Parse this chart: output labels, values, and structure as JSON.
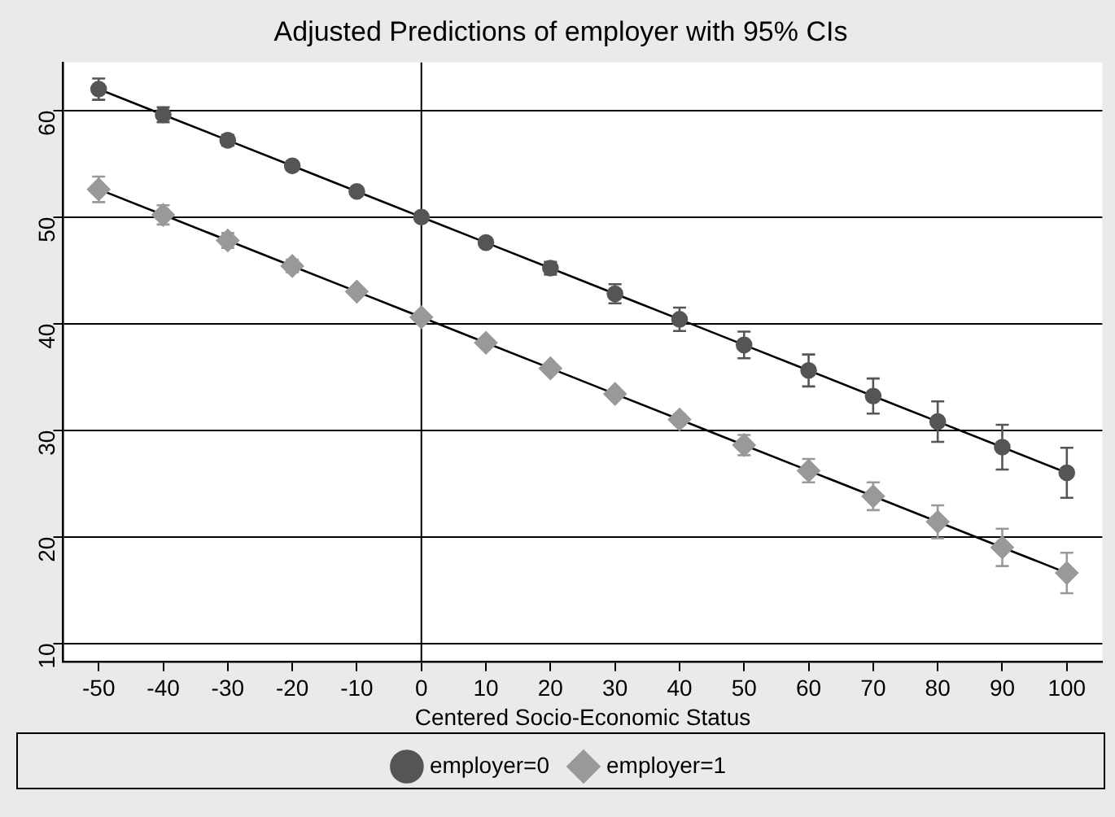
{
  "chart_data": {
    "type": "line",
    "title": "Adjusted Predictions of employer with 95% CIs",
    "xlabel": "Centered Socio-Economic Status",
    "x": [
      -50,
      -40,
      -30,
      -20,
      -10,
      0,
      10,
      20,
      30,
      40,
      50,
      60,
      70,
      80,
      90,
      100
    ],
    "xlim": [
      -55.5,
      105.5
    ],
    "xticks": [
      -50,
      -40,
      -30,
      -20,
      -10,
      0,
      10,
      20,
      30,
      40,
      50,
      60,
      70,
      80,
      90,
      100
    ],
    "ylim": [
      8.3,
      64.5
    ],
    "yticks": [
      10,
      20,
      30,
      40,
      50,
      60
    ],
    "series": [
      {
        "name": "employer=0",
        "color": "#555555",
        "marker": "circle",
        "values": [
          62.0,
          59.6,
          57.2,
          54.8,
          52.4,
          50.0,
          47.6,
          45.2,
          42.8,
          40.4,
          38.0,
          35.6,
          33.2,
          30.8,
          28.4,
          26.0
        ],
        "errors": [
          1.0,
          0.7,
          0.5,
          0.4,
          0.3,
          0.3,
          0.4,
          0.6,
          0.9,
          1.1,
          1.25,
          1.5,
          1.65,
          1.9,
          2.1,
          2.35
        ]
      },
      {
        "name": "employer=1",
        "color": "#999999",
        "marker": "diamond",
        "values": [
          52.6,
          50.2,
          47.8,
          45.4,
          43.0,
          40.6,
          38.2,
          35.8,
          33.4,
          31.0,
          28.6,
          26.2,
          23.8,
          21.4,
          19.0,
          16.6
        ],
        "errors": [
          1.2,
          0.9,
          0.7,
          0.6,
          0.4,
          0.3,
          0.3,
          0.3,
          0.3,
          0.5,
          0.95,
          1.1,
          1.3,
          1.55,
          1.75,
          1.9
        ]
      }
    ],
    "ref_lines": [
      {
        "axis": "x",
        "value": 0,
        "color": "#000000"
      }
    ],
    "grid": "y",
    "legend": "bottom",
    "line_style": "solid"
  }
}
